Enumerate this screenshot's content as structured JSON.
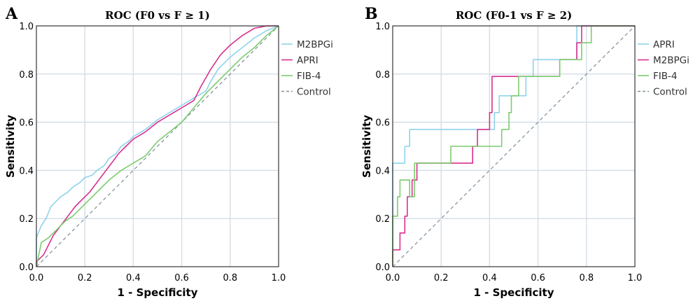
{
  "colors": {
    "cyan": "#8fd3ec",
    "magenta": "#d8308f",
    "green": "#7ccc6e",
    "control": "#7e8f9c",
    "grid": "#d4dde6"
  },
  "chart_data": [
    {
      "type": "line",
      "panel_label": "A",
      "title": "ROC (F0 vs F ≥ 1)",
      "xlabel": "1 - Specificity",
      "ylabel": "Sensitivity",
      "xlim": [
        0,
        1
      ],
      "ylim": [
        0,
        1
      ],
      "xticks": [
        "0.0",
        "0.2",
        "0.4",
        "0.6",
        "0.8",
        "1.0"
      ],
      "yticks": [
        "0.0",
        "0.2",
        "0.4",
        "0.6",
        "0.8",
        "1.0"
      ],
      "grid": true,
      "legend_position": "top-right",
      "series": [
        {
          "name": "M2BPGi",
          "color": "cyan",
          "dash": false,
          "points": [
            [
              0,
              0
            ],
            [
              0,
              0.12
            ],
            [
              0.02,
              0.17
            ],
            [
              0.04,
              0.2
            ],
            [
              0.06,
              0.25
            ],
            [
              0.08,
              0.27
            ],
            [
              0.1,
              0.29
            ],
            [
              0.13,
              0.31
            ],
            [
              0.15,
              0.33
            ],
            [
              0.18,
              0.35
            ],
            [
              0.2,
              0.37
            ],
            [
              0.23,
              0.38
            ],
            [
              0.25,
              0.4
            ],
            [
              0.28,
              0.42
            ],
            [
              0.3,
              0.45
            ],
            [
              0.33,
              0.47
            ],
            [
              0.35,
              0.5
            ],
            [
              0.38,
              0.52
            ],
            [
              0.4,
              0.54
            ],
            [
              0.45,
              0.57
            ],
            [
              0.5,
              0.61
            ],
            [
              0.55,
              0.64
            ],
            [
              0.6,
              0.67
            ],
            [
              0.65,
              0.7
            ],
            [
              0.7,
              0.73
            ],
            [
              0.72,
              0.77
            ],
            [
              0.75,
              0.82
            ],
            [
              0.8,
              0.87
            ],
            [
              0.85,
              0.91
            ],
            [
              0.9,
              0.95
            ],
            [
              0.95,
              0.98
            ],
            [
              1,
              1
            ]
          ]
        },
        {
          "name": "APRI",
          "color": "magenta",
          "dash": false,
          "points": [
            [
              0,
              0
            ],
            [
              0,
              0.02
            ],
            [
              0.03,
              0.05
            ],
            [
              0.05,
              0.09
            ],
            [
              0.07,
              0.13
            ],
            [
              0.1,
              0.17
            ],
            [
              0.13,
              0.21
            ],
            [
              0.16,
              0.25
            ],
            [
              0.19,
              0.28
            ],
            [
              0.22,
              0.31
            ],
            [
              0.25,
              0.35
            ],
            [
              0.28,
              0.39
            ],
            [
              0.31,
              0.43
            ],
            [
              0.34,
              0.47
            ],
            [
              0.37,
              0.5
            ],
            [
              0.4,
              0.53
            ],
            [
              0.45,
              0.56
            ],
            [
              0.5,
              0.6
            ],
            [
              0.55,
              0.63
            ],
            [
              0.6,
              0.66
            ],
            [
              0.65,
              0.69
            ],
            [
              0.68,
              0.75
            ],
            [
              0.72,
              0.82
            ],
            [
              0.76,
              0.88
            ],
            [
              0.8,
              0.92
            ],
            [
              0.85,
              0.96
            ],
            [
              0.9,
              0.99
            ],
            [
              0.95,
              1
            ],
            [
              1,
              1
            ]
          ]
        },
        {
          "name": "FIB-4",
          "color": "green",
          "dash": false,
          "points": [
            [
              0,
              0
            ],
            [
              0.01,
              0.05
            ],
            [
              0.02,
              0.1
            ],
            [
              0.05,
              0.12
            ],
            [
              0.08,
              0.15
            ],
            [
              0.12,
              0.19
            ],
            [
              0.15,
              0.21
            ],
            [
              0.2,
              0.26
            ],
            [
              0.25,
              0.31
            ],
            [
              0.3,
              0.36
            ],
            [
              0.35,
              0.4
            ],
            [
              0.4,
              0.43
            ],
            [
              0.45,
              0.46
            ],
            [
              0.5,
              0.52
            ],
            [
              0.55,
              0.56
            ],
            [
              0.6,
              0.6
            ],
            [
              0.65,
              0.66
            ],
            [
              0.7,
              0.72
            ],
            [
              0.75,
              0.77
            ],
            [
              0.8,
              0.82
            ],
            [
              0.85,
              0.87
            ],
            [
              0.9,
              0.91
            ],
            [
              0.95,
              0.96
            ],
            [
              1,
              1
            ]
          ]
        },
        {
          "name": "Control",
          "color": "control",
          "dash": true,
          "points": [
            [
              0,
              0
            ],
            [
              1,
              1
            ]
          ]
        }
      ]
    },
    {
      "type": "line",
      "panel_label": "B",
      "title": "ROC (F0-1 vs F ≥ 2)",
      "xlabel": "1 - Specificity",
      "ylabel": "Sensitivity",
      "xlim": [
        0,
        1
      ],
      "ylim": [
        0,
        1
      ],
      "xticks": [
        "0.0",
        "0.2",
        "0.4",
        "0.6",
        "0.8",
        "1.0"
      ],
      "yticks": [
        "0.0",
        "0.2",
        "0.4",
        "0.6",
        "0.8",
        "1.0"
      ],
      "grid": true,
      "legend_position": "top-right",
      "series": [
        {
          "name": "APRI",
          "color": "cyan",
          "dash": false,
          "points": [
            [
              0,
              0
            ],
            [
              0,
              0.43
            ],
            [
              0.05,
              0.43
            ],
            [
              0.05,
              0.5
            ],
            [
              0.07,
              0.5
            ],
            [
              0.07,
              0.57
            ],
            [
              0.42,
              0.57
            ],
            [
              0.42,
              0.64
            ],
            [
              0.44,
              0.64
            ],
            [
              0.44,
              0.71
            ],
            [
              0.55,
              0.71
            ],
            [
              0.55,
              0.79
            ],
            [
              0.58,
              0.79
            ],
            [
              0.58,
              0.86
            ],
            [
              0.76,
              0.86
            ],
            [
              0.76,
              1
            ],
            [
              1,
              1
            ]
          ]
        },
        {
          "name": "M2BPGi",
          "color": "magenta",
          "dash": false,
          "points": [
            [
              0,
              0
            ],
            [
              0,
              0.07
            ],
            [
              0.03,
              0.07
            ],
            [
              0.03,
              0.14
            ],
            [
              0.05,
              0.14
            ],
            [
              0.05,
              0.21
            ],
            [
              0.06,
              0.21
            ],
            [
              0.06,
              0.29
            ],
            [
              0.08,
              0.29
            ],
            [
              0.08,
              0.36
            ],
            [
              0.1,
              0.36
            ],
            [
              0.1,
              0.43
            ],
            [
              0.33,
              0.43
            ],
            [
              0.33,
              0.5
            ],
            [
              0.35,
              0.5
            ],
            [
              0.35,
              0.57
            ],
            [
              0.4,
              0.57
            ],
            [
              0.4,
              0.64
            ],
            [
              0.41,
              0.64
            ],
            [
              0.41,
              0.79
            ],
            [
              0.69,
              0.79
            ],
            [
              0.69,
              0.86
            ],
            [
              0.76,
              0.86
            ],
            [
              0.76,
              0.93
            ],
            [
              0.78,
              0.93
            ],
            [
              0.78,
              1
            ],
            [
              1,
              1
            ]
          ]
        },
        {
          "name": "FIB-4",
          "color": "green",
          "dash": false,
          "points": [
            [
              0,
              0
            ],
            [
              0,
              0.21
            ],
            [
              0.02,
              0.21
            ],
            [
              0.02,
              0.29
            ],
            [
              0.03,
              0.29
            ],
            [
              0.03,
              0.36
            ],
            [
              0.07,
              0.36
            ],
            [
              0.07,
              0.29
            ],
            [
              0.09,
              0.29
            ],
            [
              0.09,
              0.43
            ],
            [
              0.24,
              0.43
            ],
            [
              0.24,
              0.5
            ],
            [
              0.45,
              0.5
            ],
            [
              0.45,
              0.57
            ],
            [
              0.48,
              0.57
            ],
            [
              0.48,
              0.64
            ],
            [
              0.49,
              0.64
            ],
            [
              0.49,
              0.71
            ],
            [
              0.52,
              0.71
            ],
            [
              0.52,
              0.79
            ],
            [
              0.69,
              0.79
            ],
            [
              0.69,
              0.86
            ],
            [
              0.78,
              0.86
            ],
            [
              0.78,
              0.93
            ],
            [
              0.82,
              0.93
            ],
            [
              0.82,
              1
            ],
            [
              1,
              1
            ]
          ]
        },
        {
          "name": "Control",
          "color": "control",
          "dash": true,
          "points": [
            [
              0,
              0
            ],
            [
              1,
              1
            ]
          ]
        }
      ]
    }
  ]
}
